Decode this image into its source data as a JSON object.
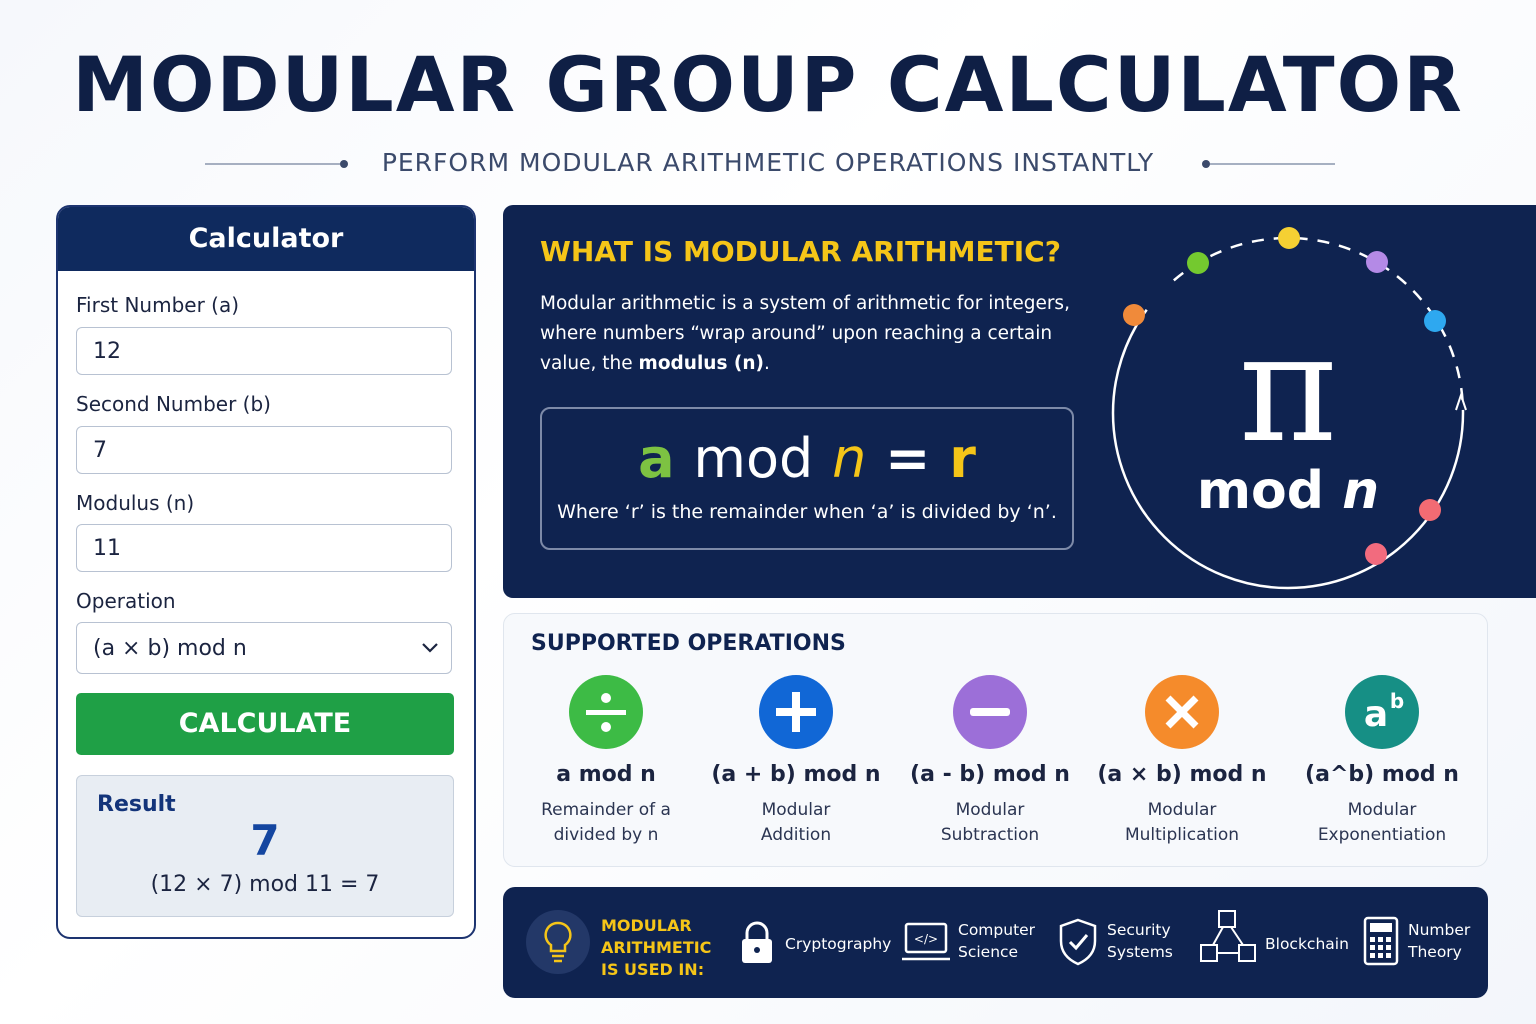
{
  "header": {
    "title": "MODULAR GROUP CALCULATOR",
    "subtitle": "PERFORM MODULAR ARITHMETIC OPERATIONS INSTANTLY"
  },
  "calculator": {
    "title": "Calculator",
    "fields": [
      {
        "label": "First Number (a)",
        "value": "12"
      },
      {
        "label": "Second Number (b)",
        "value": "7"
      },
      {
        "label": "Modulus (n)",
        "value": "11"
      },
      {
        "label": "Operation",
        "value": "(a × b) mod n"
      }
    ],
    "button": "CALCULATE",
    "result": {
      "label": "Result",
      "value": "7",
      "expression": "(12 × 7) mod 11 = 7"
    }
  },
  "info": {
    "title": "WHAT IS MODULAR ARITHMETIC?",
    "text": "Modular arithmetic is a system of arithmetic for integers, where numbers “wrap around” upon reaching a certain value, the ",
    "text_bold": "modulus (n)",
    "text_end": ".",
    "formula": {
      "a": "a",
      "mod": "mod",
      "n": "n",
      "eq": "=",
      "r": "r"
    },
    "note": "Where ‘r’ is the remainder when ‘a’ is divided by ‘n’.",
    "graphic": {
      "symbol": "π",
      "mod": "mod",
      "n": "n"
    }
  },
  "operations": {
    "title": "SUPPORTED OPERATIONS",
    "items": [
      {
        "name": "a mod n",
        "desc": "Remainder of a divided by n"
      },
      {
        "name": "(a + b) mod n",
        "desc": "Modular Addition"
      },
      {
        "name": "(a - b) mod n",
        "desc": "Modular Subtraction"
      },
      {
        "name": "(a × b) mod n",
        "desc": "Modular Multiplication"
      },
      {
        "name": "(a^b) mod n",
        "desc": "Modular Exponentiation",
        "icon_base": "a",
        "icon_exp": "b"
      }
    ]
  },
  "uses": {
    "label": "MODULAR ARITHMETIC IS USED IN:",
    "items": [
      "Cryptography",
      "Computer Science",
      "Security Systems",
      "Blockchain",
      "Number Theory"
    ]
  }
}
